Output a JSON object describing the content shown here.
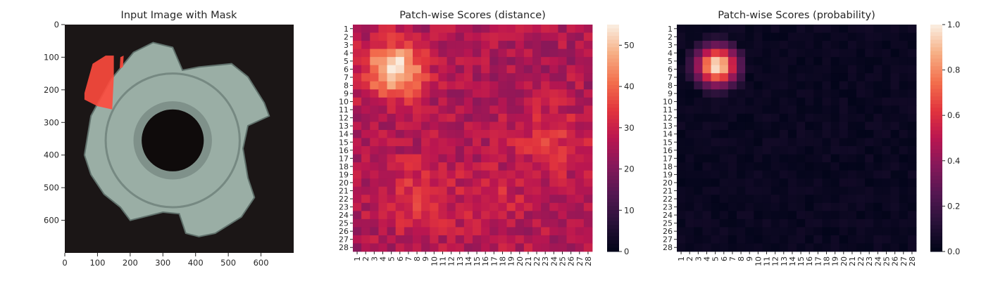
{
  "chart_data": [
    {
      "type": "image",
      "title": "Input Image with Mask",
      "xticks": [
        0,
        100,
        200,
        300,
        400,
        500,
        600
      ],
      "yticks": [
        0,
        100,
        200,
        300,
        400,
        500,
        600
      ],
      "xlim": [
        0,
        700
      ],
      "ylim": [
        700,
        0
      ],
      "colors": {
        "background": "#1b1616",
        "part": "#9aaea5",
        "part_shadow": "#5f706b",
        "hole": "#0f0b0b",
        "mask": "#ff4a3d"
      }
    },
    {
      "type": "heatmap",
      "title": "Patch-wise Scores (distance)",
      "rows": 28,
      "cols": 28,
      "vmin": 0,
      "vmax": 55,
      "colorbar_ticks": [
        0,
        10,
        20,
        30,
        40,
        50
      ],
      "hotspots": [
        {
          "row": 6.2,
          "col": 5.4,
          "peak": 55,
          "sigma": 2.3
        },
        {
          "row": 15.0,
          "col": 23.5,
          "peak": 33,
          "sigma": 3.2
        },
        {
          "row": 21.5,
          "col": 8.5,
          "peak": 33,
          "sigma": 3.5
        },
        {
          "row": 22.0,
          "col": 17.0,
          "peak": 31,
          "sigma": 3.0
        }
      ],
      "baseline": 26,
      "colormap": "rocket"
    },
    {
      "type": "heatmap",
      "title": "Patch-wise Scores (probability)",
      "rows": 28,
      "cols": 28,
      "vmin": 0.0,
      "vmax": 1.0,
      "colorbar_ticks": [
        "0.0",
        "0.2",
        "0.4",
        "0.6",
        "0.8",
        "1.0"
      ],
      "hotspots": [
        {
          "row": 5.6,
          "col": 5.2,
          "peak": 1.0,
          "sigma": 1.7
        }
      ],
      "baseline": 0.0,
      "colormap": "rocket"
    }
  ]
}
